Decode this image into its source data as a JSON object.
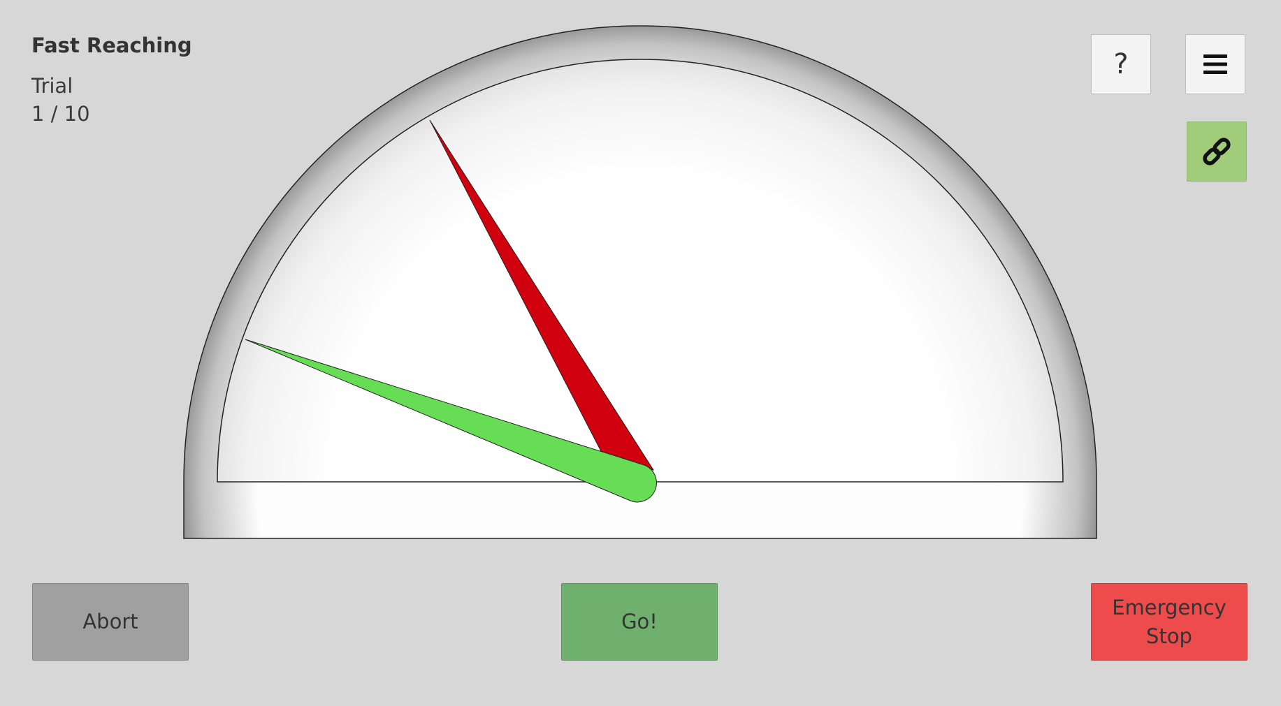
{
  "header": {
    "title": "Fast Reaching",
    "trial_label": "Trial",
    "trial_count": "1 / 10"
  },
  "toolbar": {
    "help_label": "?",
    "menu_icon": "hamburger-menu-icon",
    "link_icon": "chain-link-icon",
    "link_color": "#a1cd7a"
  },
  "gauge": {
    "target_needle_color": "#d0000f",
    "cursor_needle_color": "#66dd55"
  },
  "actions": {
    "abort_label": "Abort",
    "go_label": "Go!",
    "stop_label": "Emergency Stop",
    "abort_color": "#a0a0a0",
    "go_color": "#70b06e",
    "stop_color": "#ee4c4c"
  }
}
